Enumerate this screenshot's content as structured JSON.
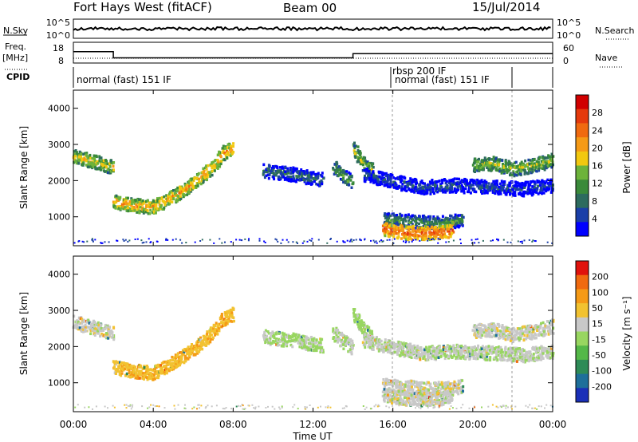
{
  "header": {
    "site": "Fort Hays West (fitACF)",
    "beam": "Beam 00",
    "date": "15/Jul/2014"
  },
  "nsky_panel": {
    "left_label": "N.Sky",
    "left_ticks": [
      "10^5",
      "10^0"
    ],
    "right_ticks": [
      "10^5",
      "10^0"
    ],
    "right_label": "N.Search"
  },
  "freq_panel": {
    "left_label_line1": "Freq.",
    "left_label_line2": "[MHz]",
    "left_ticks": [
      "18",
      "8"
    ],
    "right_ticks": [
      "60",
      "0"
    ],
    "right_label": "Nave"
  },
  "cpid_panel": {
    "label": "CPID",
    "segments": [
      {
        "text": "normal (fast) 151 IF",
        "start_hour": 0,
        "end_hour": 16
      },
      {
        "text": "rbsp 200 IF",
        "start_hour": 16,
        "end_hour": 22
      },
      {
        "text": "normal (fast) 151 IF",
        "start_hour": 16.3,
        "end_hour": 22
      }
    ]
  },
  "x_axis": {
    "label": "Time UT",
    "ticks": [
      "00:00",
      "04:00",
      "08:00",
      "12:00",
      "16:00",
      "20:00",
      "00:00"
    ]
  },
  "power_panel": {
    "y_label": "Slant Range [km]",
    "y_ticks": [
      "1000",
      "2000",
      "3000",
      "4000"
    ],
    "colorbar_label": "Power [dB]",
    "colorbar_ticks": [
      "28",
      "24",
      "20",
      "16",
      "12",
      "8",
      "4"
    ],
    "colors": [
      "#0000ff",
      "#1a3fa8",
      "#2d6b5e",
      "#3a8a3a",
      "#6db33b",
      "#f2c80f",
      "#f59a16",
      "#f06a0f",
      "#e53a0c",
      "#d10000"
    ]
  },
  "velocity_panel": {
    "y_label": "Slant Range [km]",
    "y_ticks": [
      "1000",
      "2000",
      "3000",
      "4000"
    ],
    "colorbar_label": "Velocity [m s⁻¹]",
    "colorbar_ticks": [
      "200",
      "100",
      "50",
      "15",
      "-15",
      "-50",
      "-100",
      "-200"
    ],
    "colors": [
      "#1a2fb8",
      "#1e6f9a",
      "#2e8b57",
      "#54b848",
      "#98d660",
      "#c8c8c8",
      "#f2c230",
      "#f59a16",
      "#f06a0f",
      "#e0120c"
    ]
  },
  "chart_data": {
    "type": "heatmap",
    "title": "Fort Hays West (fitACF)",
    "xlabel": "Time UT",
    "ylabel": "Slant Range [km]",
    "xlim_hours": [
      0,
      24
    ],
    "ylim_km": [
      200,
      4500
    ],
    "frequency_mhz": [
      {
        "start_hour": 0,
        "end_hour": 2,
        "value": 13.5
      },
      {
        "start_hour": 2,
        "end_hour": 14,
        "value": 10.5
      },
      {
        "start_hour": 14,
        "end_hour": 24,
        "value": 12.5
      }
    ],
    "echo_bands": [
      {
        "name": "A",
        "points": [
          [
            0,
            2700
          ],
          [
            1,
            2550
          ],
          [
            2,
            2400
          ]
        ],
        "power_db": 18,
        "velocity": 0
      },
      {
        "name": "B",
        "points": [
          [
            2,
            1450
          ],
          [
            3,
            1350
          ],
          [
            4,
            1300
          ],
          [
            5,
            1600
          ],
          [
            6,
            1950
          ],
          [
            7,
            2450
          ],
          [
            7.5,
            2800
          ],
          [
            8,
            2950
          ]
        ],
        "power_db": 20,
        "velocity": -40
      },
      {
        "name": "C",
        "points": [
          [
            9.5,
            2300
          ],
          [
            11,
            2200
          ],
          [
            12.5,
            2050
          ]
        ],
        "power_db": 10,
        "velocity": 20
      },
      {
        "name": "D",
        "points": [
          [
            13,
            2400
          ],
          [
            13.5,
            2150
          ],
          [
            14,
            2000
          ]
        ],
        "power_db": 14,
        "velocity": 10
      },
      {
        "name": "E",
        "points": [
          [
            14,
            2900
          ],
          [
            14.5,
            2500
          ],
          [
            15,
            2300
          ]
        ],
        "power_db": 16,
        "velocity": 30
      },
      {
        "name": "F",
        "points": [
          [
            15.5,
            950
          ],
          [
            17,
            900
          ],
          [
            18,
            850
          ],
          [
            19,
            900
          ],
          [
            19.5,
            950
          ]
        ],
        "power_db": 12,
        "velocity": 0
      },
      {
        "name": "G",
        "points": [
          [
            15.5,
            700
          ],
          [
            16.5,
            600
          ],
          [
            17.5,
            580
          ],
          [
            18.5,
            600
          ],
          [
            19,
            700
          ]
        ],
        "power_db": 24,
        "velocity": 0
      },
      {
        "name": "H",
        "points": [
          [
            20,
            2450
          ],
          [
            21,
            2500
          ],
          [
            22,
            2350
          ],
          [
            23,
            2450
          ],
          [
            24,
            2600
          ]
        ],
        "power_db": 16,
        "velocity": 0
      },
      {
        "name": "I",
        "points": [
          [
            14.5,
            2200
          ],
          [
            16,
            2000
          ],
          [
            17.5,
            1850
          ],
          [
            19,
            1900
          ],
          [
            21,
            1850
          ],
          [
            22.5,
            1800
          ],
          [
            24,
            1900
          ]
        ],
        "power_db": 8,
        "velocity": 10
      }
    ]
  }
}
